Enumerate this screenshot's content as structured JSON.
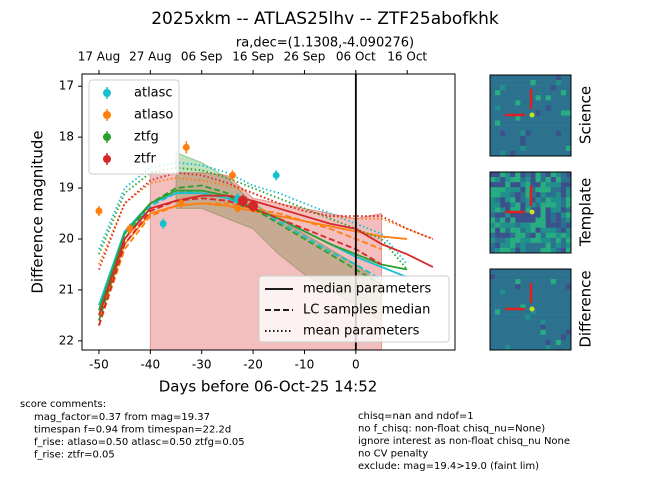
{
  "chart_data": {
    "type": "line",
    "title": "2025xkm -- ATLAS25lhv -- ZTF25abofkhk",
    "subtitle": "ra,dec=(1.1308,-4.090276)",
    "xlabel": "Days before 06-Oct-25 14:52",
    "ylabel": "Difference magnitude",
    "xlim": [
      -53.3,
      19.3
    ],
    "ylim": [
      22.18,
      16.76
    ],
    "xticks": [
      -50,
      -40,
      -30,
      -20,
      -10,
      0
    ],
    "yticks": [
      17,
      18,
      19,
      20,
      21,
      22
    ],
    "xticks_top": [
      {
        "value": -50,
        "label": "17 Aug"
      },
      {
        "value": -40,
        "label": "27 Aug"
      },
      {
        "value": -30,
        "label": "06 Sep"
      },
      {
        "value": -20,
        "label": "16 Sep"
      },
      {
        "value": -10,
        "label": "26 Sep"
      },
      {
        "value": 0,
        "label": "06 Oct"
      },
      {
        "value": 10,
        "label": "16 Oct"
      }
    ],
    "vline": 0,
    "curve_x": [
      -50,
      -45,
      -40,
      -35,
      -30,
      -25,
      -20,
      -15,
      -10,
      -5,
      0,
      5,
      10,
      15
    ],
    "series": [
      {
        "name": "atlasc",
        "color": "#17becf",
        "points": {
          "x": [
            -37.5,
            -23,
            -15.5
          ],
          "y": [
            19.7,
            19.2,
            18.75
          ],
          "err": [
            0.1,
            0.1,
            0.1
          ]
        },
        "median": [
          21.3,
          19.85,
          19.3,
          19.1,
          19.1,
          19.2,
          19.4,
          19.6,
          19.85,
          20.1,
          20.35,
          20.55,
          20.75,
          null
        ],
        "lc_median": [
          21.5,
          20.0,
          19.35,
          19.1,
          19.05,
          19.15,
          19.4,
          19.65,
          19.95,
          20.25,
          20.5,
          20.8,
          null,
          null
        ],
        "mean": [
          20.2,
          19.0,
          18.6,
          18.5,
          18.55,
          18.7,
          18.95,
          19.1,
          19.3,
          19.5,
          19.7,
          19.9,
          20.5,
          null
        ]
      },
      {
        "name": "atlaso",
        "color": "#ff7f0e",
        "points": {
          "x": [
            -50,
            -44,
            -34,
            -33,
            -24,
            -23
          ],
          "y": [
            19.45,
            19.8,
            19.3,
            18.2,
            18.75,
            19.4
          ],
          "err": [
            0.1,
            0.1,
            0.1,
            0.12,
            0.1,
            0.08
          ]
        },
        "median": [
          21.6,
          20.1,
          19.5,
          19.35,
          19.3,
          19.35,
          19.45,
          19.55,
          19.65,
          19.75,
          19.85,
          19.95,
          20.0,
          null
        ],
        "lc_median": [
          21.7,
          20.2,
          19.55,
          19.35,
          19.3,
          19.3,
          19.4,
          19.5,
          19.65,
          19.8,
          20.0,
          20.2,
          null,
          null
        ],
        "mean": [
          20.5,
          19.3,
          18.9,
          18.8,
          18.85,
          18.95,
          19.1,
          19.3,
          19.45,
          19.55,
          19.6,
          19.6,
          19.8,
          20.0
        ]
      },
      {
        "name": "ztfg",
        "color": "#2ca02c",
        "points": {
          "x": [
            -22,
            -20
          ],
          "y": [
            19.3,
            19.35
          ],
          "err": [
            0.08,
            0.08
          ]
        },
        "median": [
          21.4,
          19.9,
          19.3,
          19.05,
          19.05,
          19.15,
          19.4,
          19.6,
          19.85,
          20.1,
          20.3,
          20.5,
          20.6,
          null
        ],
        "lc_median": [
          21.6,
          20.0,
          19.3,
          19.0,
          18.95,
          19.1,
          19.4,
          19.7,
          20.0,
          20.3,
          20.6,
          20.9,
          null,
          null
        ],
        "mean": [
          20.3,
          19.1,
          18.7,
          18.6,
          18.65,
          18.8,
          19.0,
          19.2,
          19.4,
          19.6,
          19.8,
          20.0,
          20.6,
          null
        ],
        "band_upper": [
          null,
          null,
          null,
          18.3,
          18.5,
          18.8,
          19.3,
          19.6,
          19.9,
          20.2,
          20.5,
          20.9,
          null,
          null
        ],
        "band_lower": [
          null,
          null,
          null,
          19.4,
          19.4,
          19.6,
          19.8,
          20.3,
          20.7,
          21.0,
          21.3,
          21.6,
          null,
          null
        ]
      },
      {
        "name": "ztfr",
        "color": "#d62728",
        "points": {
          "x": [
            -22,
            -20
          ],
          "y": [
            19.25,
            19.35
          ],
          "err": [
            0.12,
            0.12
          ]
        },
        "median": [
          21.5,
          20.0,
          19.4,
          19.25,
          19.15,
          19.15,
          19.25,
          19.4,
          19.55,
          19.7,
          19.8,
          20.1,
          20.3,
          20.55
        ],
        "lc_median": [
          21.7,
          20.1,
          19.45,
          19.25,
          19.2,
          19.25,
          19.4,
          19.6,
          19.8,
          20.0,
          20.2,
          20.5,
          null,
          null
        ],
        "mean": [
          20.6,
          19.3,
          18.85,
          18.7,
          18.75,
          18.9,
          19.1,
          19.3,
          19.45,
          19.55,
          19.55,
          19.55,
          19.8,
          20.0
        ],
        "band_upper": [
          null,
          null,
          18.7,
          18.7,
          18.7,
          18.75,
          19.2,
          19.3,
          19.4,
          19.5,
          19.6,
          19.5,
          null,
          null
        ],
        "band_lower": [
          null,
          null,
          22.18,
          22.18,
          22.18,
          22.18,
          22.18,
          22.18,
          22.18,
          22.18,
          22.18,
          22.18,
          null,
          null
        ]
      }
    ],
    "line_styles": [
      {
        "label": "median parameters",
        "dash": "none"
      },
      {
        "label": "LC samples median",
        "dash": "6,3"
      },
      {
        "label": "mean parameters",
        "dash": "1.5,2.5"
      }
    ],
    "stamps": [
      "Science",
      "Template",
      "Difference"
    ],
    "score_comments": {
      "title": "score comments:",
      "left": [
        "mag_factor=0.37 from mag=19.37",
        "timespan f=0.94 from timespan=22.2d",
        "f_rise: atlaso=0.50 atlasc=0.50 ztfg=0.05",
        "f_rise: ztfr=0.05"
      ],
      "right": [
        "chisq=nan and ndof=1",
        "no f_chisq: non-float chisq_nu=None)",
        "ignore interest as non-float chisq_nu None",
        "no CV penalty",
        "exclude: mag=19.4>19.0 (faint lim)"
      ]
    }
  }
}
